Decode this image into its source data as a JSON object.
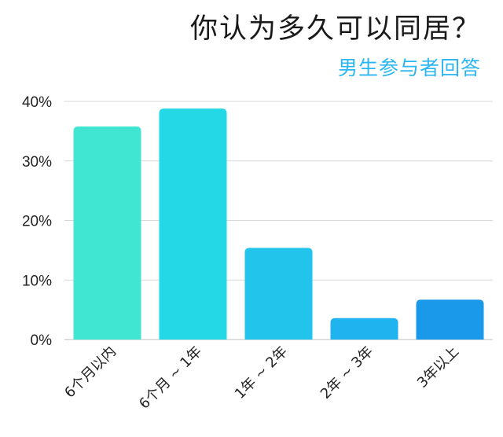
{
  "chart_data": {
    "type": "bar",
    "title": "你认为多久可以同居？",
    "subtitle": "男生参与者回答",
    "categories": [
      "6个月以内",
      "6个月 ~ 1年",
      "1年 ~ 2年",
      "2年 ~ 3年",
      "3年以上"
    ],
    "values": [
      35.8,
      38.8,
      15.4,
      3.6,
      6.7
    ],
    "value_unit": "%",
    "ylim": [
      0,
      40
    ],
    "yticks": [
      0,
      10,
      20,
      30,
      40
    ],
    "ytick_labels": [
      "0%",
      "10%",
      "20%",
      "30%",
      "40%"
    ],
    "xlabel": "",
    "ylabel": "",
    "grid": true,
    "bar_colors": [
      "#40e6d2",
      "#25d8e6",
      "#22c4ec",
      "#1fb3f0",
      "#1a98ea"
    ],
    "title_color": "#1a1a1a",
    "subtitle_color": "#2bb6f2"
  }
}
